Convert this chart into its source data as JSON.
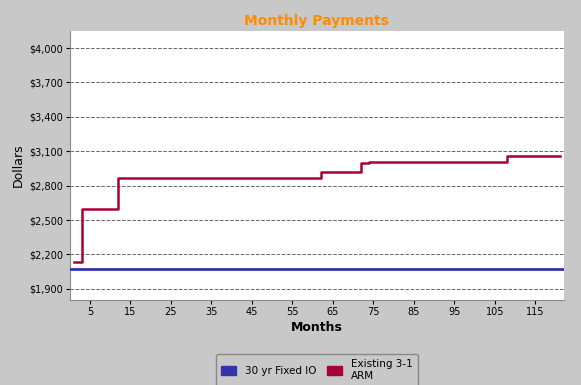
{
  "title": "Monthly Payments",
  "title_color": "#FF8C00",
  "xlabel": "Months",
  "ylabel": "Dollars",
  "background_color": "#C8C8C8",
  "plot_bg_color": "#FFFFFF",
  "ylim": [
    1800,
    4150
  ],
  "xlim": [
    0,
    122
  ],
  "yticks": [
    1900,
    2200,
    2500,
    2800,
    3100,
    3400,
    3700,
    4000
  ],
  "xticks": [
    5,
    15,
    25,
    35,
    45,
    55,
    65,
    75,
    85,
    95,
    105,
    115
  ],
  "fixed_value": 2075,
  "fixed_color": "#3333AA",
  "fixed_label": "30 yr Fixed IO",
  "arm_color": "#AA0033",
  "arm_label": "Existing 3-1\nARM",
  "arm_data": [
    [
      1,
      2130
    ],
    [
      3,
      2130
    ],
    [
      3,
      2600
    ],
    [
      12,
      2600
    ],
    [
      12,
      2870
    ],
    [
      60,
      2870
    ],
    [
      62,
      2870
    ],
    [
      62,
      2920
    ],
    [
      72,
      2920
    ],
    [
      72,
      3000
    ],
    [
      74,
      3000
    ],
    [
      74,
      3010
    ],
    [
      108,
      3010
    ],
    [
      108,
      3060
    ],
    [
      121,
      3060
    ]
  ]
}
